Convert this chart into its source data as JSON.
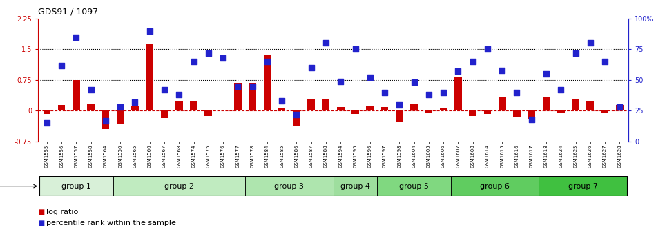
{
  "title": "GDS91 / 1097",
  "samples": [
    "GSM1555",
    "GSM1556",
    "GSM1557",
    "GSM1558",
    "GSM1564",
    "GSM1550",
    "GSM1565",
    "GSM1566",
    "GSM1567",
    "GSM1568",
    "GSM1574",
    "GSM1575",
    "GSM1576",
    "GSM1577",
    "GSM1578",
    "GSM1584",
    "GSM1585",
    "GSM1586",
    "GSM1587",
    "GSM1588",
    "GSM1594",
    "GSM1595",
    "GSM1596",
    "GSM1597",
    "GSM1598",
    "GSM1604",
    "GSM1605",
    "GSM1606",
    "GSM1607",
    "GSM1608",
    "GSM1614",
    "GSM1615",
    "GSM1616",
    "GSM1617",
    "GSM1618",
    "GSM1624",
    "GSM1625",
    "GSM1626",
    "GSM1627",
    "GSM1628"
  ],
  "log_ratio": [
    -0.08,
    0.15,
    0.75,
    0.18,
    -0.45,
    -0.32,
    0.12,
    1.62,
    -0.18,
    0.22,
    0.25,
    -0.12,
    0.0,
    0.68,
    0.68,
    1.38,
    0.08,
    -0.38,
    0.3,
    0.28,
    0.1,
    -0.08,
    0.12,
    0.1,
    -0.28,
    0.18,
    -0.05,
    0.05,
    0.82,
    -0.12,
    -0.08,
    0.32,
    -0.15,
    -0.22,
    0.35,
    -0.05,
    0.3,
    0.22,
    -0.05,
    0.15
  ],
  "percentile": [
    15,
    62,
    85,
    42,
    17,
    28,
    32,
    90,
    42,
    38,
    65,
    72,
    68,
    45,
    45,
    65,
    33,
    22,
    60,
    80,
    49,
    75,
    52,
    40,
    30,
    48,
    38,
    40,
    57,
    65,
    75,
    58,
    40,
    18,
    55,
    42,
    72,
    80,
    65,
    28
  ],
  "group_colors": [
    "#d8f0d8",
    "#c0ebc0",
    "#aee5ae",
    "#9ede9e",
    "#80d880",
    "#60cc60",
    "#40c040"
  ],
  "groups_def": [
    {
      "name": "group 1",
      "start": 0,
      "end": 4
    },
    {
      "name": "group 2",
      "start": 5,
      "end": 13
    },
    {
      "name": "group 3",
      "start": 14,
      "end": 19
    },
    {
      "name": "group 4",
      "start": 20,
      "end": 22
    },
    {
      "name": "group 5",
      "start": 23,
      "end": 27
    },
    {
      "name": "group 6",
      "start": 28,
      "end": 33
    },
    {
      "name": "group 7",
      "start": 34,
      "end": 39
    }
  ],
  "ylim_left": [
    -0.75,
    2.25
  ],
  "ylim_right": [
    0,
    100
  ],
  "yticks_left": [
    -0.75,
    0.0,
    0.75,
    1.5,
    2.25
  ],
  "yticks_right": [
    0,
    25,
    50,
    75,
    100
  ],
  "hlines_dotted": [
    0.75,
    1.5
  ],
  "hline_dashed": 0.0,
  "bar_color": "#cc0000",
  "dot_color": "#2222cc",
  "bar_width": 0.5,
  "dot_size": 28,
  "title_fontsize": 9,
  "tick_fontsize": 7,
  "sample_fontsize": 5,
  "group_fontsize": 8,
  "legend_fontsize": 8
}
